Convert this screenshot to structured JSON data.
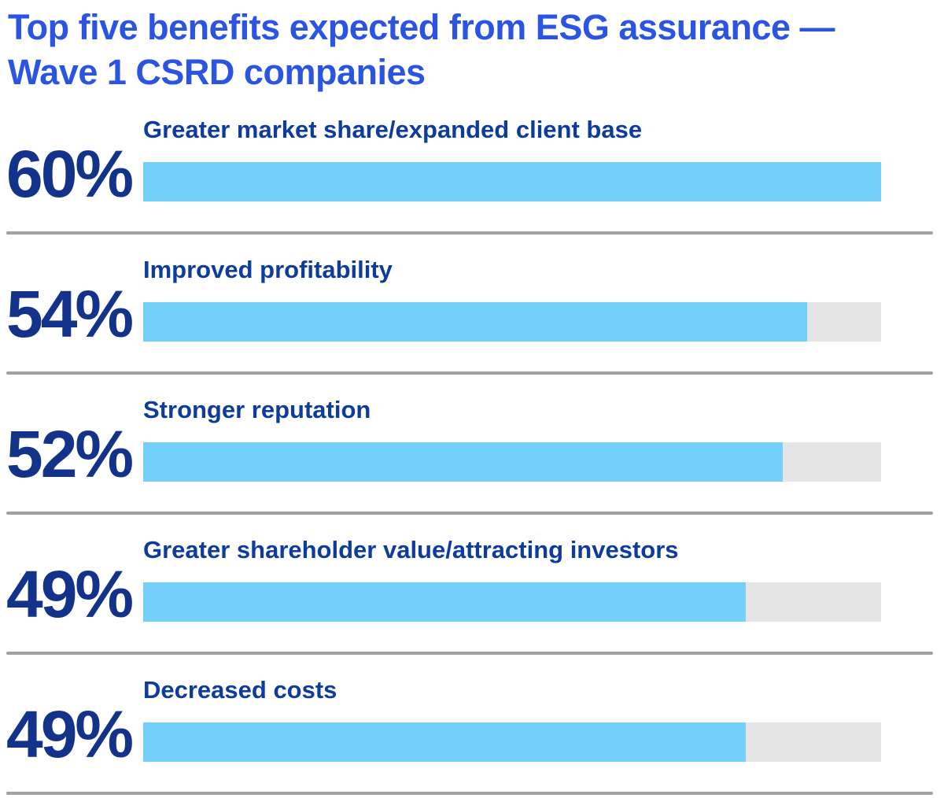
{
  "title": {
    "line1": "Top five benefits expected from ESG assurance —",
    "line2": "Wave 1 CSRD companies",
    "full_text": "Top five benefits expected from ESG assurance — Wave 1 CSRD companies"
  },
  "chart_data": {
    "type": "bar",
    "orientation": "horizontal",
    "title": "Top five benefits expected from ESG assurance — Wave 1 CSRD companies",
    "categories": [
      "Greater market share/expanded client base",
      "Improved profitability",
      "Stronger reputation",
      "Greater shareholder value/attracting investors",
      "Decreased costs"
    ],
    "values": [
      60,
      54,
      52,
      49,
      49
    ],
    "value_labels": [
      "60%",
      "54%",
      "52%",
      "49%",
      "49%"
    ],
    "unit": "%",
    "bar_scale_max": 60,
    "xlim": [
      0,
      60
    ],
    "grid": false,
    "legend": false,
    "colors": {
      "title_text": "#2B54E3",
      "value_text": "#13338A",
      "label_text": "#0D3C9E",
      "bar_fill": "#74CFFB",
      "bar_track": "#E5E5E5",
      "separator": "#A1A1A1",
      "background": "#FFFFFF"
    }
  },
  "rows": [
    {
      "percent": "60%",
      "label": "Greater market share/expanded client base"
    },
    {
      "percent": "54%",
      "label": "Improved profitability"
    },
    {
      "percent": "52%",
      "label": "Stronger reputation"
    },
    {
      "percent": "49%",
      "label": "Greater shareholder value/attracting investors"
    },
    {
      "percent": "49%",
      "label": "Decreased costs"
    }
  ]
}
